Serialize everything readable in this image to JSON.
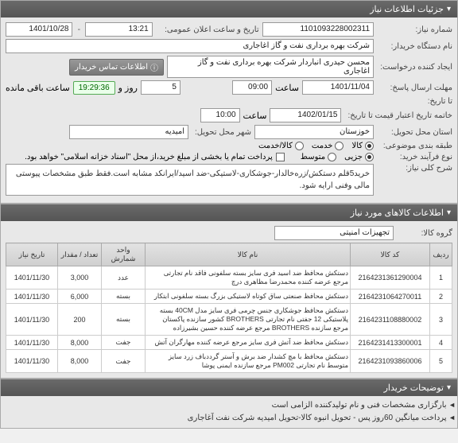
{
  "panels": {
    "need_info": {
      "title": "جزئیات اطلاعات نیاز"
    },
    "items_info": {
      "title": "اطلاعات کالاهای مورد نیاز"
    },
    "notes": {
      "title": "توضیحات خریدار"
    }
  },
  "labels": {
    "need_no": "شماره نیاز:",
    "announce": "تاریخ و ساعت اعلان عمومی:",
    "buyer_org": "نام دستگاه خریدار:",
    "requester": "ایجاد کننده درخواست:",
    "contact_btn": "اطلاعات تماس خریدار",
    "deadline": "مهلت ارسال پاسخ:",
    "remaining_suffix": "ساعت باقی مانده",
    "until": "تا تاریخ:",
    "validity": "خاتمه تاریخ اعتبار قیمت تا تاریخ:",
    "province": "استان محل تحویل:",
    "city": "شهر محل تحویل:",
    "subject_class_row": "طبقه بندی موضوعی:",
    "goods": "کالا",
    "service": "خدمت",
    "goods_service": "کالا/خدمت",
    "buy_type": "نوع فرآیند خرید:",
    "partial": "جزیی",
    "medium": "متوسط",
    "payment_note": "پرداخت تمام یا بخشی از مبلغ خرید،از محل \"اسناد خزانه اسلامی\" خواهد بود.",
    "overall_desc": "شرح کلی نیاز:",
    "group": "گروه کالا:",
    "hour_label": "ساعت",
    "day_label": "روز و",
    "date_sep": "-"
  },
  "values": {
    "need_no": "1101093228002311",
    "announce_date": "1401/10/28",
    "announce_time": "13:21",
    "buyer_org": "شرکت بهره برداری نفت و گاز اغاجاری",
    "requester": "محسن حیدری انباردار شرکت بهره برداری نفت و گاز اغاجاری",
    "deadline_date": "1401/11/04",
    "deadline_time": "09:00",
    "remaining_days": "5",
    "remaining_time": "19:29:36",
    "validity_date": "1402/01/15",
    "validity_time": "10:00",
    "province": "خوزستان",
    "city": "امیدیه",
    "overall_desc": "خرید5قلم دستکش/زره‌خالدار-جوشکاری-لاستیکی-ضد اسید/ایرانکد مشابه است.فقط طبق مشخصات پیوستی مالی وفنی ارایه شود.",
    "group": "تجهیزات امنیتی"
  },
  "table": {
    "headers": {
      "idx": "ردیف",
      "code": "کد کالا",
      "name": "نام کالا",
      "unit": "واحد شمارش",
      "qty": "تعداد / مقدار",
      "date": "تاریخ نیاز"
    },
    "rows": [
      {
        "idx": "1",
        "code": "2164231361290004",
        "name": "دستکش محافظ ضد اسید فری سایز بسته سلفونی فاقد نام تجارتی مرجع عرضه کننده محمدرضا مظاهری درچ",
        "unit": "عدد",
        "qty": "3,000",
        "date": "1401/11/30"
      },
      {
        "idx": "2",
        "code": "2164231064270011",
        "name": "دستکش محافظ صنعتی ساق کوتاه لاستیکی بزرگ بسته سلفونی ابتکار",
        "unit": "بسته",
        "qty": "6,000",
        "date": "1401/11/30"
      },
      {
        "idx": "3",
        "code": "2164231108880002",
        "name": "دستکش محافظ جوشکاری جنس چرمی فری سایز مدل 40CM بسته پلاستیکی 12 جفتی نام تجارتی BROTHERS کشور سازنده پاکستان مرجع سازنده BROTHERS مرجع عرضه کننده حسین بشیرزاده",
        "unit": "بسته",
        "qty": "200",
        "date": "1401/11/30"
      },
      {
        "idx": "4",
        "code": "2164231413300001",
        "name": "دستکش محافظ ضد آتش فری سایز مرجع عرضه کننده مهارگران آتش",
        "unit": "جفت",
        "qty": "8,000",
        "date": "1401/11/30"
      },
      {
        "idx": "5",
        "code": "2164231093860006",
        "name": "دستکش محافظ با مچ کشدار ضد برش و آستر گرددباف زرد سایز متوسط نام تجارتی PM002 مرجع سازنده ایمنی پوشا",
        "unit": "جفت",
        "qty": "8,000",
        "date": "1401/11/30"
      }
    ]
  },
  "notes": [
    "بارگزاری مشخصات فنی و نام تولیدکننده الزامی است",
    "پرداخت میانگین 60روز پس - تحویل انبوه کالا-تحویل امیدیه شرکت نفت آغاجاری"
  ],
  "colors": {
    "header_bg": "#606060",
    "countdown_bg": "#eaffea"
  }
}
